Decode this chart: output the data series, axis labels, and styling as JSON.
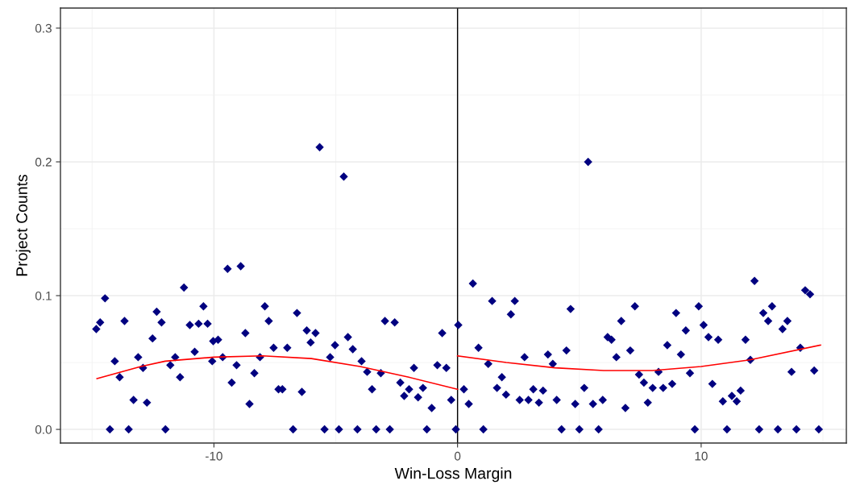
{
  "chart_data": {
    "type": "scatter",
    "xlabel": "Win-Loss Margin",
    "ylabel": "Project Counts",
    "xlim": [
      -16.3,
      15.96
    ],
    "ylim": [
      -0.0102,
      0.315
    ],
    "xticks": [
      {
        "value": -15,
        "label": null
      },
      -10,
      {
        "value": -5,
        "label": null
      },
      0,
      {
        "value": 5,
        "label": null
      },
      10,
      {
        "value": 15,
        "label": null
      }
    ],
    "yticks": [
      {
        "value": 0,
        "label": "0.0"
      },
      {
        "value": 0.05,
        "label": null
      },
      0.1,
      {
        "value": 0.15,
        "label": null
      },
      0.2,
      {
        "value": 0.25,
        "label": null
      },
      0.3
    ],
    "grid": true,
    "ref_lines": [
      {
        "axis": "x",
        "value": 0,
        "color": "#000000"
      }
    ],
    "series": [
      {
        "marker": "diamond",
        "color": "#000080",
        "x": [
          -14.83,
          -14.67,
          -14.47,
          -14.27,
          -14.07,
          -13.87,
          -13.67,
          -13.5,
          -13.3,
          -13.11,
          -12.91,
          -12.75,
          -12.52,
          -12.35,
          -12.15,
          -11.99,
          -11.79,
          -11.59,
          -11.39,
          -11.23,
          -10.99,
          -10.79,
          -10.63,
          -10.43,
          -10.26,
          -10.07,
          -10.03,
          -9.83,
          -9.64,
          -9.44,
          -9.27,
          -9.07,
          -8.9,
          -8.71,
          -8.54,
          -8.34,
          -8.11,
          -7.91,
          -7.75,
          -7.55,
          -7.35,
          -7.19,
          -6.99,
          -6.75,
          -6.59,
          -6.39,
          -6.19,
          -6.03,
          -5.83,
          -5.66,
          -5.46,
          -5.23,
          -5.03,
          -4.87,
          -4.67,
          -4.5,
          -4.3,
          -4.11,
          -3.94,
          -3.71,
          -3.51,
          -3.34,
          -3.15,
          -2.98,
          -2.78,
          -2.58,
          -2.35,
          -2.19,
          -1.99,
          -1.79,
          -1.62,
          -1.42,
          -1.26,
          -1.06,
          -0.83,
          -0.63,
          -0.46,
          -0.26,
          -0.07,
          0.03,
          0.26,
          0.46,
          0.63,
          0.86,
          1.06,
          1.26,
          1.42,
          1.62,
          1.82,
          1.99,
          2.19,
          2.35,
          2.55,
          2.75,
          2.91,
          3.11,
          3.34,
          3.51,
          3.71,
          3.91,
          4.07,
          4.27,
          4.47,
          4.64,
          4.83,
          5.0,
          5.2,
          5.36,
          5.56,
          5.79,
          5.96,
          6.16,
          6.32,
          6.52,
          6.72,
          6.89,
          7.09,
          7.28,
          7.45,
          7.65,
          7.81,
          8.01,
          8.25,
          8.44,
          8.61,
          8.81,
          8.97,
          9.17,
          9.37,
          9.54,
          9.74,
          9.9,
          10.1,
          10.3,
          10.46,
          10.7,
          10.89,
          11.06,
          11.26,
          11.46,
          11.62,
          11.82,
          12.02,
          12.19,
          12.38,
          12.55,
          12.75,
          12.91,
          13.15,
          13.34,
          13.54,
          13.71,
          13.91,
          14.07,
          14.27,
          14.47,
          14.64,
          14.83
        ],
        "values": [
          0.075,
          0.08,
          0.098,
          0,
          0.051,
          0.039,
          0.081,
          0,
          0.022,
          0.054,
          0.046,
          0.02,
          0.068,
          0.088,
          0.08,
          0,
          0.048,
          0.054,
          0.039,
          0.106,
          0.078,
          0.058,
          0.079,
          0.092,
          0.079,
          0.051,
          0.066,
          0.067,
          0.054,
          0.12,
          0.035,
          0.048,
          0.122,
          0.072,
          0.019,
          0.042,
          0.054,
          0.092,
          0.081,
          0.061,
          0.03,
          0.03,
          0.061,
          0,
          0.087,
          0.028,
          0.074,
          0.065,
          0.072,
          0.211,
          0,
          0.054,
          0.063,
          0,
          0.189,
          0.069,
          0.06,
          0,
          0.051,
          0.043,
          0.03,
          0,
          0.042,
          0.081,
          0,
          0.08,
          0.035,
          0.025,
          0.03,
          0.046,
          0.024,
          0.031,
          0,
          0.016,
          0.048,
          0.072,
          0.046,
          0.022,
          0,
          0.078,
          0.03,
          0.019,
          0.109,
          0.061,
          0,
          0.049,
          0.096,
          0.031,
          0.039,
          0.026,
          0.086,
          0.096,
          0.022,
          0.054,
          0.022,
          0.03,
          0.02,
          0.029,
          0.056,
          0.049,
          0.022,
          0,
          0.059,
          0.09,
          0.019,
          0,
          0.031,
          0.2,
          0.019,
          0,
          0.022,
          0.069,
          0.067,
          0.054,
          0.081,
          0.016,
          0.059,
          0.092,
          0.041,
          0.035,
          0.02,
          0.031,
          0.043,
          0.031,
          0.063,
          0.034,
          0.087,
          0.056,
          0.074,
          0.042,
          0,
          0.092,
          0.078,
          0.069,
          0.034,
          0.067,
          0.021,
          0,
          0.025,
          0.021,
          0.029,
          0.067,
          0.052,
          0.111,
          0,
          0.087,
          0.081,
          0.092,
          0,
          0.075,
          0.081,
          0.043,
          0,
          0.061,
          0.104,
          0.101,
          0.044,
          0
        ]
      },
      {
        "type": "line",
        "color": "#ff0000",
        "x": [
          -14.8,
          -13,
          -12,
          -10,
          -8,
          -6,
          -4,
          -2,
          0
        ],
        "values": [
          0.038,
          0.047,
          0.051,
          0.054,
          0.055,
          0.053,
          0.047,
          0.039,
          0.03
        ]
      },
      {
        "type": "line",
        "color": "#ff0000",
        "x": [
          0,
          2,
          4,
          6,
          8,
          10,
          12,
          14.9
        ],
        "values": [
          0.055,
          0.05,
          0.046,
          0.044,
          0.044,
          0.047,
          0.052,
          0.063
        ]
      }
    ]
  }
}
